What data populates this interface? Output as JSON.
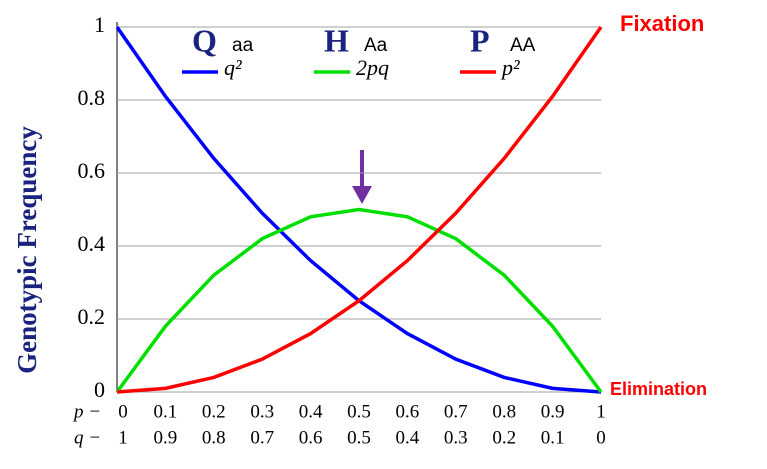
{
  "chart_data": {
    "type": "line",
    "y_label": "Genotypic Frequency",
    "annotations": [
      "Fixation",
      "Elimination"
    ],
    "x_row_labels": [
      "p −",
      "q −"
    ],
    "x": [
      0,
      0.1,
      0.2,
      0.3,
      0.4,
      0.5,
      0.6,
      0.7,
      0.8,
      0.9,
      1
    ],
    "series": [
      {
        "name": "q²",
        "letter": "Q",
        "genotype": "aa",
        "color": "#0000ff",
        "values": [
          1,
          0.81,
          0.64,
          0.49,
          0.36,
          0.25,
          0.16,
          0.09,
          0.04,
          0.01,
          0
        ]
      },
      {
        "name": "2pq",
        "letter": "H",
        "genotype": "Aa",
        "color": "#00e000",
        "values": [
          0,
          0.18,
          0.32,
          0.42,
          0.48,
          0.5,
          0.48,
          0.42,
          0.32,
          0.18,
          0
        ]
      },
      {
        "name": "p²",
        "letter": "P",
        "genotype": "AA",
        "color": "#ff0000",
        "values": [
          0,
          0.01,
          0.04,
          0.09,
          0.16,
          0.25,
          0.36,
          0.49,
          0.64,
          0.81,
          1
        ]
      }
    ],
    "xlim": [
      0,
      1
    ],
    "ylim": [
      0,
      1
    ],
    "xticks": [
      0,
      0.1,
      0.2,
      0.3,
      0.4,
      0.5,
      0.6,
      0.7,
      0.8,
      0.9,
      1
    ],
    "x2ticks": [
      {
        "value": 0,
        "label": "1"
      },
      {
        "value": 0.1,
        "label": "0.9"
      },
      {
        "value": 0.2,
        "label": "0.8"
      },
      {
        "value": 0.3,
        "label": "0.7"
      },
      {
        "value": 0.4,
        "label": "0.6"
      },
      {
        "value": 0.5,
        "label": "0.5"
      },
      {
        "value": 0.6,
        "label": "0.4"
      },
      {
        "value": 0.7,
        "label": "0.3"
      },
      {
        "value": 0.8,
        "label": "0.2"
      },
      {
        "value": 0.9,
        "label": "0.1"
      },
      {
        "value": 1,
        "label": "0"
      }
    ],
    "yticks": [
      0,
      0.2,
      0.4,
      0.6,
      0.8,
      1
    ],
    "grid": true
  }
}
